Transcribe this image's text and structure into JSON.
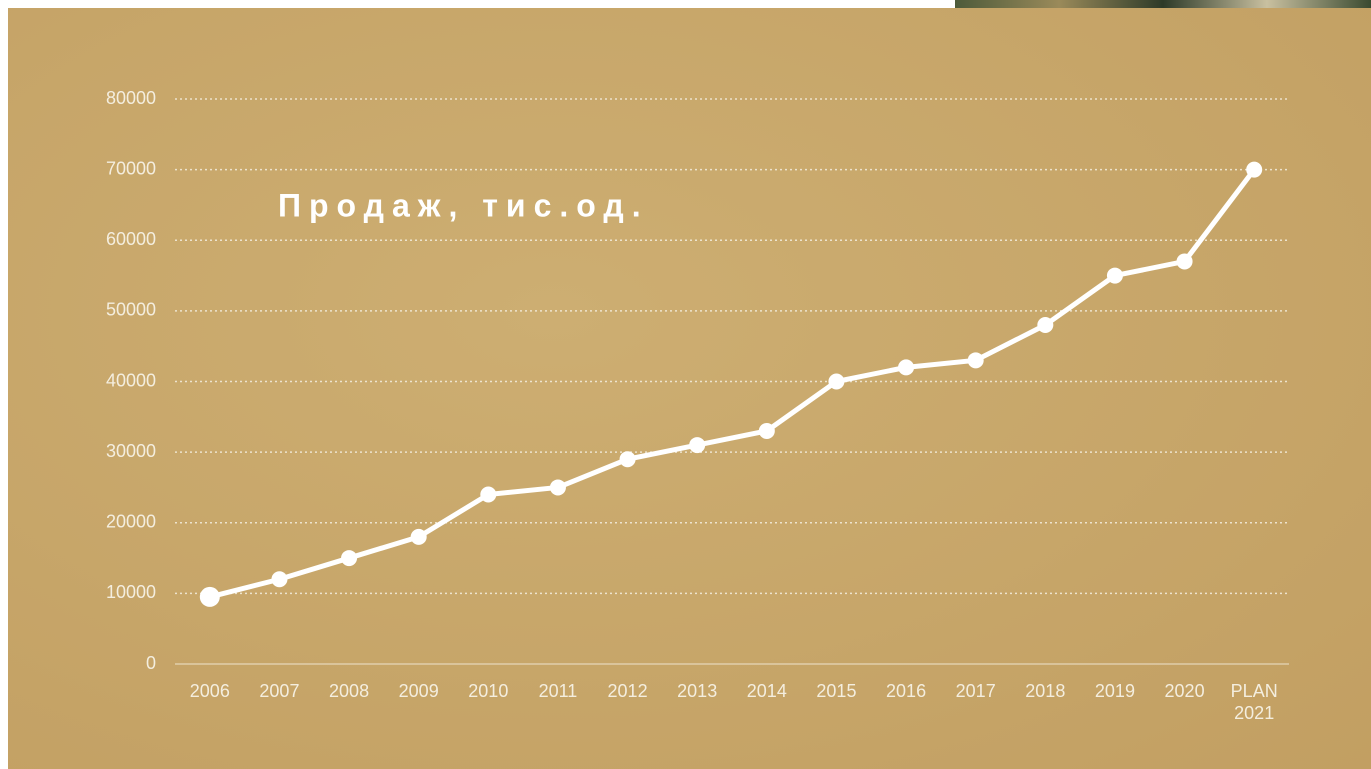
{
  "chart_data": {
    "type": "line",
    "title": "Продаж, тис.од.",
    "categories": [
      "2006",
      "2007",
      "2008",
      "2009",
      "2010",
      "2011",
      "2012",
      "2013",
      "2014",
      "2015",
      "2016",
      "2017",
      "2018",
      "2019",
      "2020",
      "PLAN 2021"
    ],
    "values": [
      9500,
      12000,
      15000,
      18000,
      24000,
      25000,
      29000,
      31000,
      33000,
      40000,
      42000,
      43000,
      48000,
      55000,
      57000,
      70000
    ],
    "color": "#ffffff",
    "ylim": [
      0,
      80000
    ],
    "yticks": [
      0,
      10000,
      20000,
      30000,
      40000,
      50000,
      60000,
      70000,
      80000
    ],
    "grid": true
  }
}
